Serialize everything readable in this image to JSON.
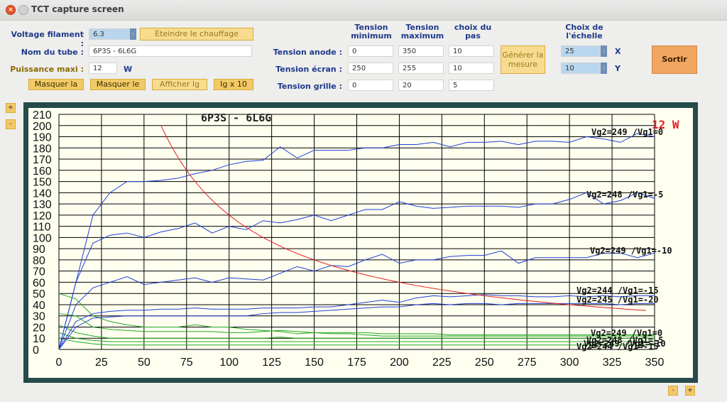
{
  "window": {
    "title": "TCT capture screen"
  },
  "form": {
    "filament_label": "Voltage filament :",
    "filament_value": "6.3",
    "heat_button": "Eteindre le chauffage",
    "tube_label": "Nom du tube :",
    "tube_value": "6P3S - 6L6G",
    "power_label": "Puissance maxi :",
    "power_value": "12",
    "power_unit": "W",
    "hide_a_button": "Masquer la",
    "hide_b_button": "Masquer le",
    "show_ig_button": "Afficher Ig",
    "ig_x10_button": "Ig x 10"
  },
  "grid": {
    "col_min": "Tension minimum",
    "col_max": "Tension maximum",
    "col_step": "choix du pas",
    "rows": [
      {
        "label": "Tension anode :",
        "min": "0",
        "max": "350",
        "step": "10"
      },
      {
        "label": "Tension écran :",
        "min": "250",
        "max": "255",
        "step": "10"
      },
      {
        "label": "Tension grille :",
        "min": "0",
        "max": "20",
        "step": "5"
      }
    ],
    "generate_button": "Générer la mesure"
  },
  "scale": {
    "heading": "Choix de l'échelle",
    "x_value": "25",
    "y_value": "10",
    "x_label": "X",
    "y_label": "Y"
  },
  "exit_button": "Sortir",
  "zoom": {
    "plus": "+",
    "minus": "-"
  },
  "chart_data": {
    "type": "line",
    "title": "6P3S - 6L6G",
    "power_label": "12 W",
    "xlim": [
      0,
      350
    ],
    "ylim": [
      0,
      210
    ],
    "x_ticks": [
      0,
      25,
      50,
      75,
      100,
      125,
      150,
      175,
      200,
      225,
      250,
      275,
      300,
      325,
      350
    ],
    "y_ticks": [
      0,
      10,
      20,
      30,
      40,
      50,
      60,
      70,
      80,
      90,
      100,
      110,
      120,
      130,
      140,
      150,
      160,
      170,
      180,
      190,
      200,
      210
    ],
    "grid": true,
    "power_curve_watts": 12,
    "colors": {
      "plate": "#1f3fd6",
      "screen": "#22a822",
      "power": "#e02020",
      "background": "#fffff0",
      "frame": "#254a4a"
    },
    "series_labels": [
      "Vg2=249 /Vg1=0",
      "Vg2=248 /Vg1=-5",
      "Vg2=249 /Vg1=-10",
      "Vg2=244 /Vg1=-15",
      "Vg2=245 /Vg1=-20",
      "Vg2=249 /Vg1=0",
      "Vg2=248 /Vg1=-5",
      "Vg2=249 /Vg1=-10",
      "Vg2=244 /Vg1=-15"
    ],
    "plate_series": [
      {
        "x": [
          0,
          10,
          20,
          30,
          40,
          50,
          60,
          70,
          80,
          90,
          100,
          110,
          120,
          130,
          140,
          150,
          160,
          170,
          180,
          190,
          200,
          210,
          220,
          230,
          240,
          250,
          260,
          270,
          280,
          290,
          300,
          310,
          320,
          330,
          340,
          350
        ],
        "y": [
          0,
          60,
          120,
          140,
          150,
          150,
          151,
          153,
          157,
          160,
          165,
          168,
          169,
          181,
          171,
          178,
          178,
          178,
          180,
          180,
          183,
          183,
          185,
          181,
          185,
          185,
          186,
          183,
          186,
          186,
          185,
          190,
          188,
          185,
          193,
          190
        ]
      },
      {
        "x": [
          0,
          10,
          20,
          30,
          40,
          50,
          60,
          70,
          80,
          90,
          100,
          110,
          120,
          130,
          140,
          150,
          160,
          170,
          180,
          190,
          200,
          210,
          220,
          230,
          240,
          250,
          260,
          270,
          280,
          290,
          300,
          310,
          320,
          330,
          340,
          350
        ],
        "y": [
          0,
          60,
          95,
          102,
          104,
          100,
          105,
          108,
          113,
          104,
          110,
          107,
          115,
          113,
          116,
          120,
          115,
          120,
          125,
          125,
          132,
          128,
          126,
          127,
          128,
          128,
          128,
          127,
          130,
          130,
          134,
          140,
          130,
          133,
          140,
          135
        ]
      },
      {
        "x": [
          0,
          10,
          20,
          30,
          40,
          50,
          60,
          70,
          80,
          90,
          100,
          110,
          120,
          130,
          140,
          150,
          160,
          170,
          180,
          190,
          200,
          210,
          220,
          230,
          240,
          250,
          260,
          270,
          280,
          290,
          300,
          310,
          320,
          330,
          340,
          350
        ],
        "y": [
          0,
          40,
          55,
          60,
          65,
          58,
          60,
          62,
          64,
          60,
          64,
          63,
          62,
          68,
          74,
          70,
          75,
          74,
          80,
          85,
          77,
          80,
          80,
          83,
          84,
          84,
          88,
          77,
          82,
          82,
          82,
          82,
          86,
          86,
          82,
          86
        ]
      },
      {
        "x": [
          0,
          10,
          20,
          30,
          40,
          50,
          60,
          70,
          80,
          90,
          100,
          110,
          120,
          130,
          140,
          150,
          160,
          170,
          180,
          190,
          200,
          210,
          220,
          230,
          240,
          250,
          260,
          270,
          280,
          290,
          300,
          310,
          320,
          330,
          340,
          350
        ],
        "y": [
          0,
          25,
          32,
          34,
          35,
          35,
          36,
          36,
          37,
          36,
          36,
          36,
          37,
          37,
          37,
          38,
          38,
          40,
          42,
          44,
          42,
          46,
          48,
          47,
          48,
          49,
          48,
          48,
          47,
          47,
          48,
          47,
          48,
          47,
          48,
          48
        ]
      },
      {
        "x": [
          0,
          10,
          20,
          30,
          40,
          50,
          60,
          70,
          80,
          90,
          100,
          110,
          120,
          130,
          140,
          150,
          160,
          170,
          180,
          190,
          200,
          210,
          220,
          230,
          240,
          250,
          260,
          270,
          280,
          290,
          300,
          310,
          320,
          330,
          340,
          350
        ],
        "y": [
          0,
          20,
          28,
          29,
          30,
          30,
          30,
          30,
          30,
          30,
          30,
          30,
          32,
          33,
          33,
          34,
          35,
          36,
          37,
          38,
          38,
          40,
          41,
          40,
          41,
          41,
          40,
          41,
          41,
          41,
          41,
          41,
          41,
          40,
          41,
          41
        ]
      }
    ],
    "screen_series": [
      {
        "x": [
          0,
          10,
          20,
          30,
          40,
          50,
          60,
          70,
          80,
          90,
          100,
          110,
          120,
          130,
          140,
          150,
          160,
          170,
          180,
          190,
          200,
          210,
          220,
          230,
          240,
          250,
          260,
          270,
          280,
          290,
          300,
          310,
          320,
          330,
          340,
          350
        ],
        "y": [
          50,
          45,
          30,
          25,
          22,
          20,
          20,
          20,
          22,
          20,
          20,
          18,
          17,
          16,
          14,
          15,
          14,
          14,
          13,
          12,
          12,
          12,
          12,
          12,
          12,
          12,
          12,
          12,
          12,
          12,
          12,
          12,
          12,
          12,
          12,
          12
        ]
      },
      {
        "x": [
          0,
          10,
          20,
          30,
          40,
          50,
          60,
          70,
          80,
          90,
          100,
          110,
          120,
          130,
          140,
          150,
          160,
          170,
          180,
          190,
          200,
          210,
          220,
          230,
          240,
          250,
          260,
          270,
          280,
          290,
          300,
          310,
          320,
          330,
          340,
          350
        ],
        "y": [
          32,
          30,
          20,
          18,
          17,
          16,
          16,
          16,
          16,
          16,
          15,
          15,
          16,
          17,
          16,
          15,
          15,
          15,
          15,
          14,
          14,
          14,
          14,
          13,
          13,
          13,
          13,
          13,
          13,
          13,
          13,
          13,
          13,
          13,
          13,
          13
        ]
      },
      {
        "x": [
          0,
          10,
          20,
          30,
          40,
          50,
          60,
          70,
          80,
          90,
          100,
          110,
          120,
          130,
          140,
          150,
          160,
          170,
          180,
          190,
          200,
          210,
          220,
          230,
          240,
          250,
          260,
          270,
          280,
          290,
          300,
          310,
          320,
          330,
          340,
          350
        ],
        "y": [
          22,
          15,
          12,
          10,
          10,
          10,
          10,
          10,
          10,
          10,
          10,
          10,
          10,
          11,
          10,
          10,
          10,
          10,
          10,
          10,
          10,
          10,
          10,
          10,
          10,
          10,
          10,
          10,
          10,
          10,
          10,
          10,
          10,
          10,
          10,
          10
        ]
      },
      {
        "x": [
          0,
          10,
          20,
          30,
          40,
          50,
          60,
          70,
          80,
          90,
          100,
          110,
          120,
          130,
          140,
          150,
          160,
          170,
          180,
          190,
          200,
          210,
          220,
          230,
          240,
          250,
          260,
          270,
          280,
          290,
          300,
          310,
          320,
          330,
          340,
          350
        ],
        "y": [
          15,
          10,
          8,
          7,
          7,
          7,
          7,
          7,
          7,
          7,
          7,
          7,
          7,
          7,
          7,
          7,
          7,
          7,
          7,
          7,
          7,
          7,
          7,
          7,
          7,
          7,
          7,
          7,
          7,
          7,
          7,
          7,
          7,
          7,
          7,
          7
        ]
      },
      {
        "x": [
          0,
          10,
          20,
          30,
          40,
          50,
          60,
          70,
          80,
          90,
          100,
          110,
          120,
          130,
          140,
          150,
          160,
          170,
          180,
          190,
          200,
          210,
          220,
          230,
          240,
          250,
          260,
          270,
          280,
          290,
          300,
          310,
          320,
          330,
          340,
          350
        ],
        "y": [
          10,
          7,
          5,
          4,
          4,
          4,
          4,
          4,
          4,
          4,
          4,
          4,
          4,
          4,
          4,
          4,
          4,
          4,
          4,
          4,
          4,
          4,
          4,
          4,
          4,
          4,
          4,
          4,
          4,
          4,
          4,
          4,
          4,
          4,
          4,
          4
        ]
      }
    ]
  }
}
